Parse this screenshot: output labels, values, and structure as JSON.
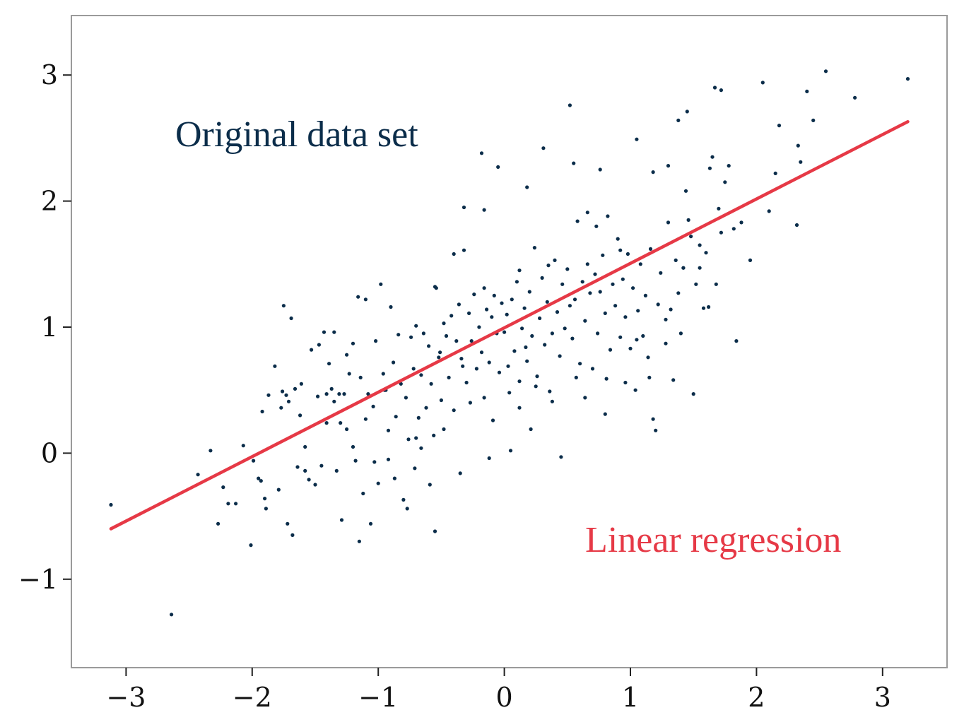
{
  "chart_data": {
    "type": "scatter",
    "title": "",
    "xlabel": "",
    "ylabel": "",
    "xlim": [
      -3.45,
      3.5
    ],
    "ylim": [
      -1.7,
      3.45
    ],
    "grid": false,
    "x_ticks": [
      -3,
      -2,
      -1,
      0,
      1,
      2,
      3
    ],
    "y_ticks": [
      -1,
      0,
      1,
      2,
      3
    ],
    "x_tick_labels": [
      "−3",
      "−2",
      "−1",
      "0",
      "1",
      "2",
      "3"
    ],
    "y_tick_labels": [
      "−1",
      "0",
      "1",
      "2",
      "3"
    ],
    "annotations": [
      {
        "key": "original",
        "text": "Original data set",
        "color": "#0b2d4a"
      },
      {
        "key": "regression",
        "text": "Linear regression",
        "color": "#e63946"
      }
    ],
    "series": [
      {
        "kind": "points",
        "color": "#0b2d4a",
        "points": [
          [
            -3.12,
            -0.41
          ],
          [
            -2.64,
            -1.28
          ],
          [
            -2.43,
            -0.17
          ],
          [
            -2.33,
            0.02
          ],
          [
            -2.27,
            -0.56
          ],
          [
            -2.23,
            -0.27
          ],
          [
            -2.19,
            -0.4
          ],
          [
            -2.07,
            0.06
          ],
          [
            -2.01,
            -0.73
          ],
          [
            -1.95,
            -0.2
          ],
          [
            -1.93,
            -0.22
          ],
          [
            -1.92,
            0.33
          ],
          [
            -1.9,
            -0.36
          ],
          [
            -1.89,
            -0.44
          ],
          [
            -1.87,
            0.46
          ],
          [
            -1.82,
            0.69
          ],
          [
            -1.79,
            -0.29
          ],
          [
            -1.76,
            0.49
          ],
          [
            -1.75,
            1.17
          ],
          [
            -1.73,
            0.46
          ],
          [
            -1.72,
            -0.56
          ],
          [
            -1.71,
            0.41
          ],
          [
            -1.69,
            1.07
          ],
          [
            -1.68,
            -0.65
          ],
          [
            -1.66,
            0.51
          ],
          [
            -1.64,
            -0.11
          ],
          [
            -1.61,
            0.55
          ],
          [
            -1.58,
            -0.14
          ],
          [
            -1.55,
            -0.21
          ],
          [
            -1.53,
            0.82
          ],
          [
            -1.5,
            -0.25
          ],
          [
            -1.47,
            0.86
          ],
          [
            -1.45,
            -0.1
          ],
          [
            -1.43,
            0.96
          ],
          [
            -1.41,
            0.47
          ],
          [
            -1.39,
            0.71
          ],
          [
            -1.37,
            0.51
          ],
          [
            -1.35,
            0.96
          ],
          [
            -1.33,
            -0.14
          ],
          [
            -1.31,
            0.47
          ],
          [
            -1.3,
            0.24
          ],
          [
            -1.29,
            -0.53
          ],
          [
            -1.27,
            0.47
          ],
          [
            -1.25,
            0.78
          ],
          [
            -1.23,
            0.63
          ],
          [
            -1.2,
            0.87
          ],
          [
            -1.18,
            -0.06
          ],
          [
            -1.16,
            1.24
          ],
          [
            -1.14,
            0.6
          ],
          [
            -1.12,
            -0.32
          ],
          [
            -1.1,
            1.22
          ],
          [
            -1.08,
            0.47
          ],
          [
            -1.06,
            -0.56
          ],
          [
            -1.04,
            0.37
          ],
          [
            -1.02,
            0.89
          ],
          [
            -1.0,
            -0.24
          ],
          [
            -0.98,
            1.34
          ],
          [
            -0.96,
            0.63
          ],
          [
            -0.94,
            0.5
          ],
          [
            -0.92,
            0.18
          ],
          [
            -0.9,
            1.16
          ],
          [
            -0.88,
            0.72
          ],
          [
            -0.86,
            0.29
          ],
          [
            -0.84,
            0.94
          ],
          [
            -0.82,
            0.55
          ],
          [
            -0.8,
            -0.37
          ],
          [
            -0.78,
            0.44
          ],
          [
            -0.76,
            0.11
          ],
          [
            -0.74,
            0.92
          ],
          [
            -0.72,
            0.67
          ],
          [
            -0.7,
            1.01
          ],
          [
            -0.68,
            0.28
          ],
          [
            -0.66,
            0.62
          ],
          [
            -0.64,
            0.95
          ],
          [
            -0.62,
            0.36
          ],
          [
            -0.6,
            0.85
          ],
          [
            -0.58,
            0.55
          ],
          [
            -0.56,
            0.14
          ],
          [
            -0.54,
            1.31
          ],
          [
            -0.52,
            0.76
          ],
          [
            -0.5,
            0.42
          ],
          [
            -0.48,
            1.03
          ],
          [
            -0.46,
            0.93
          ],
          [
            -0.44,
            0.6
          ],
          [
            -0.42,
            1.09
          ],
          [
            -0.4,
            0.34
          ],
          [
            -0.38,
            0.89
          ],
          [
            -0.36,
            1.18
          ],
          [
            -0.34,
            0.75
          ],
          [
            -0.32,
            1.61
          ],
          [
            -0.3,
            0.56
          ],
          [
            -0.28,
            1.11
          ],
          [
            -0.26,
            0.89
          ],
          [
            -0.24,
            1.26
          ],
          [
            -0.22,
            0.67
          ],
          [
            -0.2,
            1.0
          ],
          [
            -0.18,
            0.8
          ],
          [
            -0.16,
            1.31
          ],
          [
            -0.14,
            1.14
          ],
          [
            -0.12,
            0.72
          ],
          [
            -0.1,
            1.08
          ],
          [
            -0.08,
            1.25
          ],
          [
            -0.06,
            0.95
          ],
          [
            -0.04,
            0.64
          ],
          [
            -0.02,
            1.19
          ],
          [
            0.0,
            0.96
          ],
          [
            0.02,
            1.1
          ],
          [
            0.04,
            0.48
          ],
          [
            0.06,
            1.22
          ],
          [
            0.08,
            0.81
          ],
          [
            0.1,
            1.36
          ],
          [
            0.12,
            0.57
          ],
          [
            0.14,
            0.99
          ],
          [
            0.16,
            1.15
          ],
          [
            0.18,
            0.73
          ],
          [
            0.2,
            1.28
          ],
          [
            0.22,
            0.93
          ],
          [
            0.24,
            1.63
          ],
          [
            0.26,
            0.61
          ],
          [
            0.28,
            1.07
          ],
          [
            0.3,
            1.39
          ],
          [
            0.32,
            0.86
          ],
          [
            0.34,
            1.2
          ],
          [
            0.36,
            0.49
          ],
          [
            0.38,
            0.95
          ],
          [
            0.4,
            1.53
          ],
          [
            0.42,
            1.12
          ],
          [
            0.44,
            0.77
          ],
          [
            0.46,
            1.34
          ],
          [
            0.48,
            0.99
          ],
          [
            0.5,
            1.46
          ],
          [
            0.52,
            1.17
          ],
          [
            0.54,
            0.91
          ],
          [
            0.56,
            1.22
          ],
          [
            0.58,
            1.84
          ],
          [
            0.6,
            0.71
          ],
          [
            0.62,
            1.36
          ],
          [
            0.64,
            1.05
          ],
          [
            0.66,
            1.5
          ],
          [
            0.68,
            1.27
          ],
          [
            0.7,
            0.67
          ],
          [
            0.72,
            1.42
          ],
          [
            0.74,
            0.95
          ],
          [
            0.76,
            1.28
          ],
          [
            0.78,
            1.57
          ],
          [
            0.8,
            1.11
          ],
          [
            0.82,
            1.88
          ],
          [
            0.84,
            0.82
          ],
          [
            0.86,
            1.34
          ],
          [
            0.88,
            1.17
          ],
          [
            0.9,
            1.7
          ],
          [
            0.92,
            0.92
          ],
          [
            0.94,
            1.38
          ],
          [
            0.96,
            1.08
          ],
          [
            0.98,
            1.58
          ],
          [
            1.0,
            0.83
          ],
          [
            1.02,
            1.31
          ],
          [
            1.04,
            0.5
          ],
          [
            1.06,
            1.13
          ],
          [
            1.08,
            1.5
          ],
          [
            1.1,
            0.93
          ],
          [
            1.12,
            1.25
          ],
          [
            1.14,
            0.76
          ],
          [
            1.16,
            1.62
          ],
          [
            1.18,
            0.27
          ],
          [
            1.2,
            0.18
          ],
          [
            1.22,
            1.18
          ],
          [
            1.24,
            1.43
          ],
          [
            1.28,
            1.06
          ],
          [
            1.3,
            1.83
          ],
          [
            1.32,
            1.14
          ],
          [
            1.34,
            0.58
          ],
          [
            1.36,
            1.53
          ],
          [
            1.38,
            1.27
          ],
          [
            1.4,
            0.95
          ],
          [
            1.42,
            1.47
          ],
          [
            1.44,
            2.08
          ],
          [
            1.46,
            1.85
          ],
          [
            1.48,
            1.72
          ],
          [
            1.5,
            0.47
          ],
          [
            1.52,
            1.34
          ],
          [
            1.55,
            1.65
          ],
          [
            1.58,
            1.15
          ],
          [
            1.6,
            1.59
          ],
          [
            1.62,
            1.16
          ],
          [
            1.65,
            2.35
          ],
          [
            1.7,
            1.94
          ],
          [
            1.72,
            1.75
          ],
          [
            1.75,
            2.15
          ],
          [
            1.78,
            2.28
          ],
          [
            1.82,
            1.78
          ],
          [
            1.84,
            0.89
          ],
          [
            1.88,
            1.83
          ],
          [
            1.95,
            1.53
          ],
          [
            2.05,
            2.94
          ],
          [
            2.1,
            1.92
          ],
          [
            2.15,
            2.22
          ],
          [
            2.18,
            2.6
          ],
          [
            2.32,
            1.81
          ],
          [
            2.35,
            2.31
          ],
          [
            2.4,
            2.87
          ],
          [
            2.45,
            2.64
          ],
          [
            2.55,
            3.03
          ],
          [
            2.78,
            2.82
          ],
          [
            3.2,
            2.97
          ],
          [
            1.67,
            2.9
          ],
          [
            1.72,
            2.88
          ],
          [
            1.45,
            2.71
          ],
          [
            1.38,
            2.64
          ],
          [
            1.3,
            2.28
          ],
          [
            1.05,
            2.49
          ],
          [
            0.52,
            2.76
          ],
          [
            0.31,
            2.42
          ],
          [
            0.18,
            2.11
          ],
          [
            -0.05,
            2.27
          ],
          [
            -0.18,
            2.38
          ],
          [
            0.55,
            2.3
          ],
          [
            0.76,
            2.25
          ],
          [
            1.18,
            2.23
          ],
          [
            1.63,
            2.26
          ],
          [
            2.33,
            2.44
          ],
          [
            -0.32,
            1.95
          ],
          [
            -0.16,
            1.93
          ],
          [
            -0.4,
            1.58
          ],
          [
            -0.55,
            1.32
          ],
          [
            0.12,
            1.45
          ],
          [
            0.35,
            1.49
          ],
          [
            0.66,
            1.91
          ],
          [
            0.73,
            1.8
          ],
          [
            0.92,
            1.61
          ],
          [
            1.05,
            0.9
          ],
          [
            1.42,
            1.47
          ],
          [
            1.55,
            1.47
          ],
          [
            1.68,
            1.34
          ],
          [
            -1.25,
            0.19
          ],
          [
            -1.15,
            -0.7
          ],
          [
            -0.92,
            -0.05
          ],
          [
            -0.77,
            -0.44
          ],
          [
            -0.55,
            -0.62
          ],
          [
            -0.35,
            -0.16
          ],
          [
            -0.12,
            -0.04
          ],
          [
            0.05,
            0.02
          ],
          [
            0.21,
            0.19
          ],
          [
            0.45,
            -0.03
          ],
          [
            0.64,
            0.44
          ],
          [
            0.81,
            0.59
          ],
          [
            -0.66,
            0.04
          ],
          [
            -0.48,
            0.19
          ],
          [
            -0.27,
            0.4
          ],
          [
            -0.09,
            0.26
          ],
          [
            0.12,
            0.36
          ],
          [
            0.25,
            0.53
          ],
          [
            -1.35,
            0.41
          ],
          [
            -1.48,
            0.45
          ],
          [
            -1.62,
            0.3
          ],
          [
            -1.1,
            0.27
          ],
          [
            -0.95,
            0.5
          ],
          [
            -0.7,
            0.12
          ],
          [
            -0.51,
            0.8
          ],
          [
            -0.33,
            0.69
          ],
          [
            -0.16,
            0.44
          ],
          [
            0.03,
            0.69
          ],
          [
            0.17,
            0.84
          ],
          [
            0.38,
            0.41
          ],
          [
            0.57,
            0.6
          ],
          [
            0.8,
            0.31
          ],
          [
            0.96,
            0.56
          ],
          [
            1.15,
            0.6
          ],
          [
            1.28,
            0.87
          ],
          [
            -2.13,
            -0.4
          ],
          [
            -1.99,
            -0.06
          ],
          [
            -1.77,
            0.36
          ],
          [
            -1.58,
            0.05
          ],
          [
            -1.41,
            0.24
          ],
          [
            -1.2,
            0.05
          ],
          [
            -1.03,
            -0.07
          ],
          [
            -0.87,
            -0.2
          ],
          [
            -0.71,
            -0.12
          ],
          [
            -0.59,
            -0.25
          ]
        ]
      },
      {
        "kind": "line",
        "color": "#e63946",
        "points": [
          [
            -3.12,
            -0.6
          ],
          [
            3.2,
            2.63
          ]
        ]
      }
    ]
  }
}
